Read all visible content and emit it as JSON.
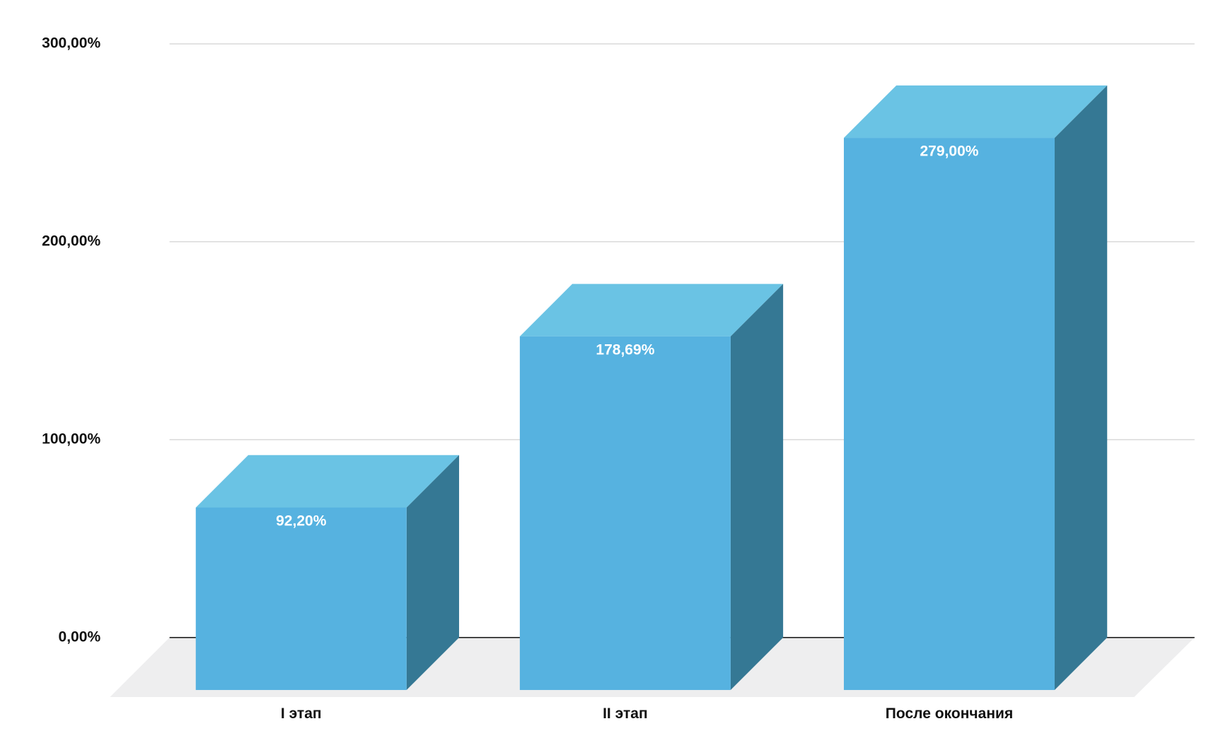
{
  "chart_data": {
    "type": "bar3d",
    "categories": [
      "I этап",
      "II этап",
      "После окончания"
    ],
    "values": [
      92.2,
      178.69,
      279
    ],
    "value_labels": [
      "92,20%",
      "178,69%",
      "279,00%"
    ],
    "colors": {
      "front": "#56b2e0",
      "top": "#6ac3e4",
      "side": "#357894"
    },
    "ylim": [
      0,
      300
    ],
    "yticks": [
      {
        "value": 0,
        "label": "0,00%"
      },
      {
        "value": 100,
        "label": "100,00%"
      },
      {
        "value": 200,
        "label": "200,00%"
      },
      {
        "value": 300,
        "label": "300,00%"
      }
    ],
    "grid": true
  }
}
